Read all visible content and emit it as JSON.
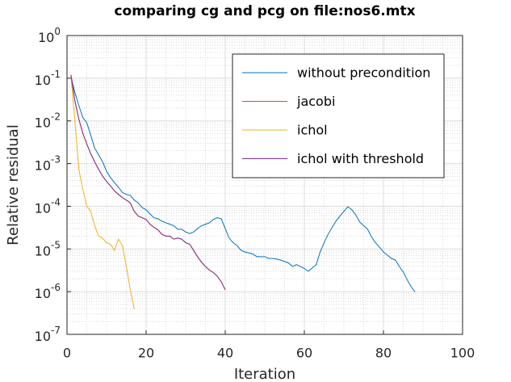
{
  "chart_data": {
    "type": "line",
    "title": "comparing cg and pcg on file:nos6.mtx",
    "xlabel": "Iteration",
    "ylabel": "Relative residual",
    "xlim": [
      0,
      100
    ],
    "xticks": [
      0,
      20,
      40,
      60,
      80,
      100
    ],
    "ylim": [
      1e-07,
      1
    ],
    "log_y": true,
    "yticks": [
      {
        "value": 1,
        "label": "10^0"
      },
      {
        "value": 0.1,
        "label": "10^-1"
      },
      {
        "value": 0.01,
        "label": "10^-2"
      },
      {
        "value": 0.001,
        "label": "10^-3"
      },
      {
        "value": 0.0001,
        "label": "10^-4"
      },
      {
        "value": 1e-05,
        "label": "10^-5"
      },
      {
        "value": 1e-06,
        "label": "10^-6"
      },
      {
        "value": 1e-07,
        "label": "10^-7"
      }
    ],
    "grid": true,
    "minor_grid": true,
    "legend": "northeast",
    "series": [
      {
        "name": "without precondition",
        "color": "#0072bd",
        "x": [
          1,
          2,
          3,
          4,
          5,
          6,
          7,
          8,
          9,
          10,
          11,
          12,
          13,
          14,
          15,
          16,
          17,
          18,
          19,
          20,
          21,
          22,
          23,
          24,
          25,
          26,
          27,
          28,
          29,
          30,
          31,
          32,
          33,
          34,
          35,
          36,
          37,
          38,
          39,
          40,
          41,
          42,
          43,
          44,
          45,
          46,
          47,
          48,
          49,
          50,
          51,
          52,
          53,
          54,
          55,
          56,
          57,
          58,
          59,
          60,
          61,
          62,
          63,
          64,
          65,
          66,
          67,
          68,
          69,
          70,
          71,
          72,
          73,
          74,
          75,
          76,
          77,
          78,
          79,
          80,
          81,
          82,
          83,
          84,
          85,
          86,
          87,
          88
        ],
        "values": [
          0.11,
          0.046,
          0.023,
          0.012,
          0.0091,
          0.0046,
          0.0023,
          0.0016,
          0.0011,
          0.00066,
          0.00047,
          0.00036,
          0.00028,
          0.00021,
          0.00019,
          0.00018,
          0.00014,
          0.00012,
          9.3e-05,
          8.3e-05,
          6.6e-05,
          5.4e-05,
          5.1e-05,
          4.5e-05,
          4.1e-05,
          3.8e-05,
          3.5e-05,
          2.9e-05,
          2.9e-05,
          2.5e-05,
          2.3e-05,
          2.5e-05,
          3e-05,
          3.5e-05,
          3.8e-05,
          4.1e-05,
          4.9e-05,
          5.4e-05,
          5.1e-05,
          3e-05,
          1.8e-05,
          1.4e-05,
          1.2e-05,
          9.3e-06,
          8.5e-06,
          8.1e-06,
          7.6e-06,
          6.6e-06,
          6.6e-06,
          6.6e-06,
          6e-06,
          6e-06,
          5.8e-06,
          5.5e-06,
          5.1e-06,
          4.7e-06,
          3.9e-06,
          4.3e-06,
          3.9e-06,
          3.5e-06,
          3e-06,
          3.6e-06,
          4.3e-06,
          8.5e-06,
          1.4e-05,
          2.2e-05,
          3.2e-05,
          4.5e-05,
          5.9e-05,
          7.6e-05,
          9.8e-05,
          8.3e-05,
          6.3e-05,
          4.3e-05,
          3.5e-05,
          2.9e-05,
          1.9e-05,
          1.4e-05,
          1.1e-05,
          8.5e-06,
          7.2e-06,
          6e-06,
          5.5e-06,
          3.9e-06,
          2.9e-06,
          1.9e-06,
          1.3e-06,
          9.8e-07
        ]
      },
      {
        "name": "jacobi",
        "color": "#d95319",
        "x": [
          1,
          2,
          3,
          4,
          5,
          6,
          7,
          8,
          9,
          10,
          11,
          12,
          13,
          14,
          15,
          16,
          17,
          18,
          19,
          20,
          21,
          22,
          23,
          24,
          25,
          26,
          27,
          28,
          29,
          30,
          31,
          32,
          33,
          34,
          35,
          36,
          37,
          38,
          39,
          40
        ],
        "values": [
          0.12,
          0.029,
          0.011,
          0.0051,
          0.0029,
          0.0017,
          0.0011,
          0.00073,
          0.00051,
          0.00038,
          0.0003,
          0.00023,
          0.00019,
          0.00016,
          0.00014,
          0.00012,
          7.6e-05,
          5.9e-05,
          5.4e-05,
          4.9e-05,
          3.8e-05,
          3.2e-05,
          2.8e-05,
          2.2e-05,
          2e-05,
          2e-05,
          1.7e-05,
          1.8e-05,
          1.7e-05,
          1.4e-05,
          1.3e-05,
          9.3e-06,
          6.6e-06,
          4.9e-06,
          3.9e-06,
          3.2e-06,
          2.8e-06,
          2.3e-06,
          1.7e-06,
          1.1e-06
        ]
      },
      {
        "name": "ichol",
        "color": "#edb120",
        "x": [
          1,
          2,
          3,
          4,
          5,
          6,
          7,
          8,
          9,
          10,
          11,
          12,
          13,
          14,
          15,
          16,
          17
        ],
        "values": [
          0.11,
          0.01,
          0.00073,
          0.00025,
          0.0001,
          7.6e-05,
          3.5e-05,
          2e-05,
          1.8e-05,
          1.4e-05,
          1.3e-05,
          9.3e-06,
          1.7e-05,
          1.2e-05,
          3.9e-06,
          1.1e-06,
          3.9e-07
        ]
      },
      {
        "name": "ichol with threshold",
        "color": "#7e2f8e",
        "x": [
          1,
          2,
          3,
          4,
          5,
          6,
          7,
          8,
          9,
          10,
          11,
          12,
          13,
          14,
          15,
          16,
          17,
          18,
          19,
          20,
          21,
          22,
          23,
          24,
          25,
          26,
          27,
          28,
          29,
          30,
          31,
          32,
          33,
          34,
          35,
          36,
          37,
          38,
          39,
          40
        ],
        "values": [
          0.12,
          0.029,
          0.011,
          0.0051,
          0.0029,
          0.0017,
          0.0011,
          0.00073,
          0.00051,
          0.00038,
          0.0003,
          0.00023,
          0.00019,
          0.00016,
          0.00014,
          0.00012,
          7.6e-05,
          5.9e-05,
          5.4e-05,
          4.9e-05,
          3.8e-05,
          3.2e-05,
          2.8e-05,
          2.2e-05,
          2e-05,
          2e-05,
          1.7e-05,
          1.8e-05,
          1.7e-05,
          1.4e-05,
          1.3e-05,
          9.3e-06,
          6.6e-06,
          4.9e-06,
          3.9e-06,
          3.2e-06,
          2.8e-06,
          2.3e-06,
          1.7e-06,
          1.1e-06
        ]
      }
    ]
  }
}
